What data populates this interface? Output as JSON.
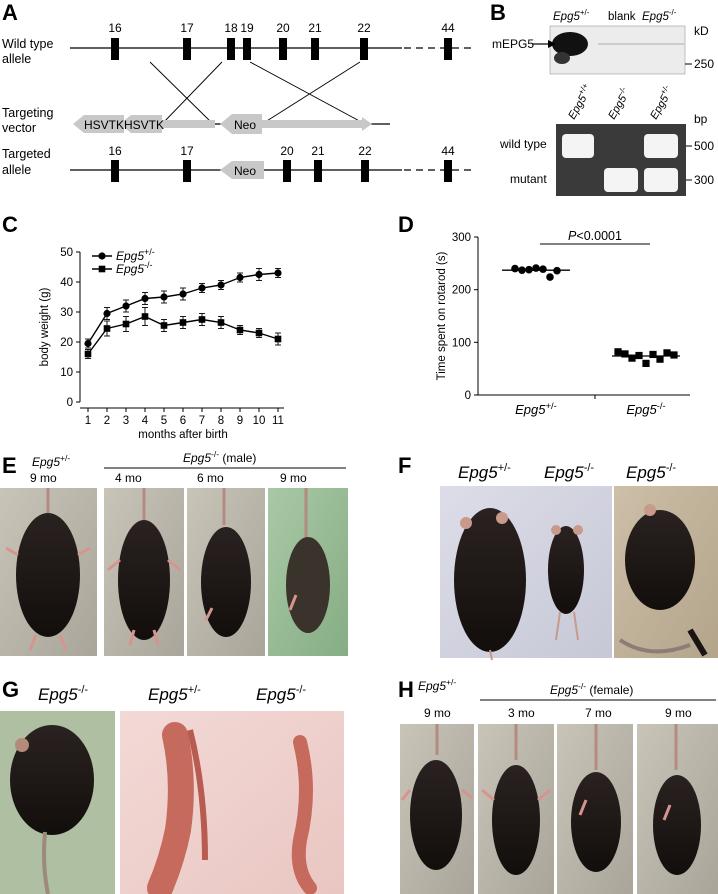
{
  "panels": {
    "A": {
      "label": "A",
      "row_wt": "Wild type",
      "row_wt2": "allele",
      "row_tv": "Targeting",
      "row_tv2": "vector",
      "row_ta": "Targeted",
      "row_ta2": "allele",
      "exons_wt": [
        "16",
        "17",
        "18",
        "19",
        "20",
        "21",
        "22",
        "44"
      ],
      "exons_ta": [
        "16",
        "17",
        "20",
        "21",
        "22",
        "44"
      ],
      "hsvtk1": "HSVTK",
      "hsvtk2": "HSVTK",
      "neo": "Neo",
      "neo2": "Neo"
    },
    "B": {
      "label": "B",
      "kd": "kD",
      "lane1": "Epg5",
      "lane1_sup": "+/-",
      "lane2": "blank",
      "lane3": "Epg5",
      "lane3_sup": "-/-",
      "protein": "mEPG5",
      "marker": "250",
      "bp": "bp",
      "pcr1": "Epg5",
      "pcr1_sup": "+/+",
      "pcr2": "Epg5",
      "pcr2_sup": "-/-",
      "pcr3": "Epg5",
      "pcr3_sup": "+/-",
      "band_wt": "wild type",
      "band_mut": "mutant",
      "bp500": "500",
      "bp300": "300"
    },
    "C": {
      "label": "C"
    },
    "D": {
      "label": "D"
    },
    "E": {
      "label": "E",
      "het": "Epg5",
      "het_sup": "+/-",
      "het_age": "9 mo",
      "ko": "Epg5",
      "ko_sup": "-/-",
      "ko_note": " (male)",
      "ages": [
        "4 mo",
        "6 mo",
        "9 mo"
      ]
    },
    "F": {
      "label": "F",
      "g1": "Epg5",
      "g1_sup": "+/-",
      "g2": "Epg5",
      "g2_sup": "-/-",
      "g3": "Epg5",
      "g3_sup": "-/-"
    },
    "G": {
      "label": "G",
      "g1": "Epg5",
      "g1_sup": "-/-",
      "g2": "Epg5",
      "g2_sup": "+/-",
      "g3": "Epg5",
      "g3_sup": "-/-"
    },
    "H": {
      "label": "H",
      "het": "Epg5",
      "het_sup": "+/-",
      "het_age": "9 mo",
      "ko": "Epg5",
      "ko_sup": "-/-",
      "ko_note": " (female)",
      "ages": [
        "3 mo",
        "7 mo",
        "9 mo"
      ]
    }
  },
  "chart_data": [
    {
      "type": "line",
      "panel": "C",
      "xlabel": "months after birth",
      "ylabel": "body weight (g)",
      "x": [
        1,
        2,
        3,
        4,
        5,
        6,
        7,
        8,
        9,
        10,
        11
      ],
      "xlim": [
        1,
        11
      ],
      "ylim": [
        0,
        50
      ],
      "yticks": [
        0,
        10,
        20,
        30,
        40,
        50
      ],
      "series": [
        {
          "name": "Epg5",
          "name_sup": "+/-",
          "marker": "circle",
          "values": [
            19.5,
            29.5,
            32,
            34.5,
            35,
            36,
            38,
            39,
            41.5,
            42.5,
            43
          ],
          "errors": [
            1.5,
            2,
            2,
            2,
            2,
            2,
            1.5,
            1.5,
            1.5,
            2,
            1.5
          ]
        },
        {
          "name": "Epg5",
          "name_sup": "-/-",
          "marker": "square",
          "values": [
            16,
            24.5,
            26,
            28.5,
            25.5,
            26.5,
            27.5,
            26.5,
            24,
            23,
            21
          ],
          "errors": [
            1.5,
            2.5,
            2.5,
            3,
            2,
            2,
            2,
            2,
            1.5,
            1.5,
            2
          ]
        }
      ],
      "legend": "top-left",
      "grid": false
    },
    {
      "type": "scatter",
      "panel": "D",
      "ylabel": "Time spent on rotarod (s)",
      "ylim": [
        0,
        300
      ],
      "yticks": [
        0,
        100,
        200,
        300
      ],
      "annotation": "P<0.0001",
      "groups": [
        {
          "name": "Epg5",
          "name_sup": "+/-",
          "marker": "circle",
          "values": [
            240,
            237,
            238,
            241,
            239,
            224,
            236
          ],
          "mean": 237
        },
        {
          "name": "Epg5",
          "name_sup": "-/-",
          "marker": "square",
          "values": [
            82,
            78,
            70,
            75,
            60,
            77,
            68,
            80,
            76
          ],
          "mean": 74
        }
      ]
    }
  ]
}
